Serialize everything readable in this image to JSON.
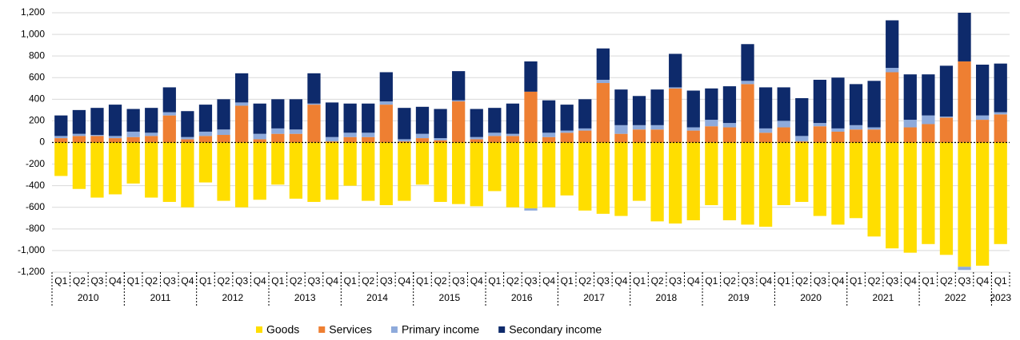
{
  "chart_data": {
    "type": "stacked_bar",
    "categories": [
      "Q1",
      "Q2",
      "Q3",
      "Q4",
      "Q1",
      "Q2",
      "Q3",
      "Q4",
      "Q1",
      "Q2",
      "Q3",
      "Q4",
      "Q1",
      "Q2",
      "Q3",
      "Q4",
      "Q1",
      "Q2",
      "Q3",
      "Q4",
      "Q1",
      "Q2",
      "Q3",
      "Q4",
      "Q1",
      "Q2",
      "Q3",
      "Q4",
      "Q1",
      "Q2",
      "Q3",
      "Q4",
      "Q1",
      "Q2",
      "Q3",
      "Q4",
      "Q1",
      "Q2",
      "Q3",
      "Q4",
      "Q1",
      "Q2",
      "Q3",
      "Q4",
      "Q1",
      "Q2",
      "Q3",
      "Q4",
      "Q1",
      "Q2",
      "Q3",
      "Q4",
      "Q1"
    ],
    "category_groups": [
      {
        "label": "2010",
        "size": 4
      },
      {
        "label": "2011",
        "size": 4
      },
      {
        "label": "2012",
        "size": 4
      },
      {
        "label": "2013",
        "size": 4
      },
      {
        "label": "2014",
        "size": 4
      },
      {
        "label": "2015",
        "size": 4
      },
      {
        "label": "2016",
        "size": 4
      },
      {
        "label": "2017",
        "size": 4
      },
      {
        "label": "2018",
        "size": 4
      },
      {
        "label": "2019",
        "size": 4
      },
      {
        "label": "2020",
        "size": 4
      },
      {
        "label": "2021",
        "size": 4
      },
      {
        "label": "2022",
        "size": 4
      },
      {
        "label": "2023",
        "size": 1
      }
    ],
    "series": [
      {
        "name": "Goods",
        "color": "#ffde00",
        "values": [
          -310,
          -430,
          -510,
          -480,
          -380,
          -510,
          -550,
          -600,
          -370,
          -540,
          -600,
          -530,
          -390,
          -520,
          -550,
          -530,
          -400,
          -540,
          -580,
          -540,
          -390,
          -550,
          -570,
          -590,
          -450,
          -600,
          -610,
          -600,
          -490,
          -630,
          -660,
          -680,
          -540,
          -730,
          -750,
          -720,
          -580,
          -720,
          -760,
          -780,
          -580,
          -550,
          -680,
          -760,
          -700,
          -870,
          -980,
          -1020,
          -940,
          -1040,
          -1150,
          -1140,
          -940
        ]
      },
      {
        "name": "Services",
        "color": "#ee7f32",
        "values": [
          40,
          60,
          60,
          40,
          50,
          60,
          250,
          30,
          60,
          70,
          340,
          30,
          80,
          80,
          350,
          10,
          50,
          50,
          350,
          10,
          40,
          20,
          380,
          30,
          60,
          60,
          470,
          50,
          90,
          110,
          550,
          80,
          120,
          120,
          500,
          110,
          150,
          140,
          540,
          90,
          140,
          10,
          150,
          100,
          120,
          120,
          650,
          140,
          170,
          230,
          750,
          210,
          260
        ]
      },
      {
        "name": "Primary income",
        "color": "#8eaadb",
        "values": [
          20,
          20,
          10,
          20,
          50,
          30,
          30,
          20,
          40,
          50,
          30,
          50,
          50,
          40,
          10,
          40,
          40,
          40,
          30,
          20,
          40,
          20,
          10,
          20,
          30,
          20,
          -20,
          40,
          20,
          20,
          30,
          80,
          40,
          40,
          10,
          30,
          60,
          40,
          30,
          40,
          60,
          50,
          30,
          30,
          40,
          20,
          40,
          70,
          80,
          10,
          -30,
          40,
          20
        ]
      },
      {
        "name": "Secondary income",
        "color": "#0e2a6b",
        "values": [
          190,
          220,
          250,
          290,
          210,
          230,
          230,
          240,
          250,
          280,
          270,
          280,
          270,
          280,
          280,
          320,
          270,
          270,
          270,
          290,
          250,
          270,
          270,
          260,
          230,
          280,
          280,
          300,
          240,
          270,
          290,
          330,
          270,
          330,
          310,
          340,
          290,
          340,
          340,
          380,
          310,
          350,
          400,
          470,
          380,
          430,
          440,
          420,
          380,
          470,
          450,
          470,
          450
        ]
      }
    ],
    "ylim": [
      -1200,
      1200
    ],
    "yticks": [
      {
        "value": -1200,
        "label": "-1,200"
      },
      {
        "value": -1000,
        "label": "-1,000"
      },
      -800,
      -600,
      -400,
      -200,
      0,
      200,
      400,
      600,
      800,
      {
        "value": 1000,
        "label": "1,000"
      },
      {
        "value": 1200,
        "label": "1,200"
      }
    ],
    "grid": true
  }
}
